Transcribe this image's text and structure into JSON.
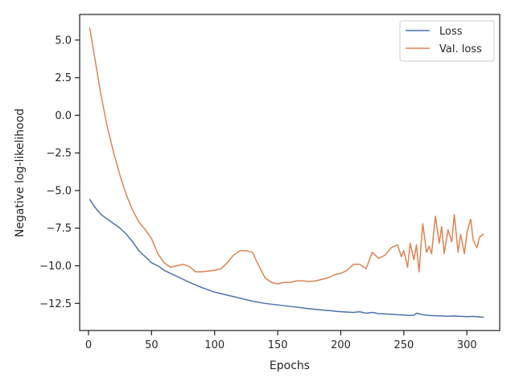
{
  "chart_data": {
    "type": "line",
    "title": "",
    "xlabel": "Epochs",
    "ylabel": "Negative log-likelihood",
    "xlim": [
      -7,
      326
    ],
    "ylim": [
      -14.3,
      6.7
    ],
    "xticks": [
      0,
      50,
      100,
      150,
      200,
      250,
      300
    ],
    "xtick_labels": [
      "0",
      "50",
      "100",
      "150",
      "200",
      "250",
      "300"
    ],
    "yticks": [
      5.0,
      2.5,
      0.0,
      -2.5,
      -5.0,
      -7.5,
      -10.0,
      -12.5
    ],
    "ytick_labels": [
      "5.0",
      "2.5",
      "0.0",
      "−2.5",
      "−5.0",
      "−7.5",
      "−10.0",
      "−12.5"
    ],
    "grid": false,
    "legend": "top-right",
    "series": [
      {
        "name": "Loss",
        "color": "#4c72b0",
        "x": [
          1,
          5,
          10,
          15,
          20,
          25,
          30,
          35,
          40,
          45,
          50,
          55,
          60,
          65,
          70,
          80,
          90,
          100,
          110,
          120,
          130,
          140,
          150,
          160,
          170,
          180,
          190,
          200,
          210,
          215,
          220,
          225,
          230,
          235,
          240,
          245,
          250,
          255,
          258,
          260,
          265,
          270,
          275,
          280,
          285,
          290,
          295,
          300,
          305,
          310,
          313
        ],
        "y": [
          -5.6,
          -6.1,
          -6.6,
          -6.9,
          -7.2,
          -7.5,
          -7.9,
          -8.4,
          -9.0,
          -9.4,
          -9.8,
          -10.0,
          -10.3,
          -10.5,
          -10.7,
          -11.1,
          -11.45,
          -11.75,
          -11.95,
          -12.15,
          -12.35,
          -12.5,
          -12.6,
          -12.7,
          -12.8,
          -12.9,
          -12.97,
          -13.05,
          -13.1,
          -13.05,
          -13.15,
          -13.1,
          -13.18,
          -13.2,
          -13.22,
          -13.25,
          -13.27,
          -13.3,
          -13.28,
          -13.15,
          -13.25,
          -13.3,
          -13.32,
          -13.33,
          -13.35,
          -13.33,
          -13.36,
          -13.38,
          -13.36,
          -13.4,
          -13.42
        ]
      },
      {
        "name": "Val. loss",
        "color": "#dd8452",
        "x": [
          1,
          5,
          10,
          15,
          20,
          25,
          30,
          35,
          40,
          45,
          50,
          55,
          60,
          65,
          70,
          75,
          80,
          85,
          90,
          95,
          100,
          105,
          110,
          115,
          120,
          125,
          130,
          135,
          140,
          145,
          150,
          155,
          160,
          165,
          170,
          175,
          180,
          185,
          190,
          195,
          200,
          205,
          210,
          215,
          220,
          225,
          230,
          235,
          240,
          245,
          248,
          250,
          253,
          255,
          258,
          260,
          262,
          265,
          268,
          270,
          272,
          275,
          278,
          280,
          282,
          285,
          288,
          290,
          293,
          295,
          298,
          300,
          303,
          305,
          308,
          310,
          313
        ],
        "y": [
          5.8,
          3.8,
          1.3,
          -0.8,
          -2.5,
          -4.0,
          -5.3,
          -6.3,
          -7.1,
          -7.6,
          -8.2,
          -9.2,
          -9.8,
          -10.1,
          -10.0,
          -9.9,
          -10.05,
          -10.4,
          -10.4,
          -10.35,
          -10.3,
          -10.2,
          -9.8,
          -9.3,
          -9.0,
          -9.0,
          -9.1,
          -10.0,
          -10.8,
          -11.1,
          -11.2,
          -11.1,
          -11.1,
          -11.0,
          -11.0,
          -11.05,
          -11.0,
          -10.9,
          -10.8,
          -10.6,
          -10.5,
          -10.3,
          -9.9,
          -9.9,
          -10.2,
          -9.1,
          -9.5,
          -9.3,
          -8.8,
          -8.6,
          -9.4,
          -9.0,
          -10.1,
          -8.5,
          -9.6,
          -8.6,
          -10.4,
          -7.2,
          -9.1,
          -8.7,
          -9.2,
          -6.7,
          -8.5,
          -7.4,
          -9.2,
          -7.6,
          -8.4,
          -6.6,
          -9.1,
          -7.9,
          -9.2,
          -7.8,
          -6.9,
          -8.3,
          -8.8,
          -8.1,
          -7.9
        ]
      }
    ]
  }
}
